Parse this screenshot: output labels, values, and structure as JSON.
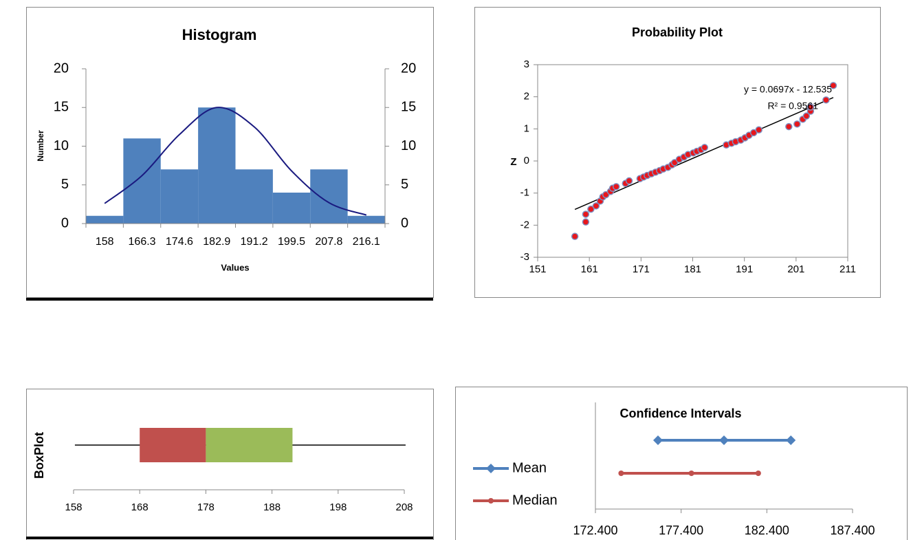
{
  "chart_data": [
    {
      "type": "bar",
      "title": "Histogram",
      "x_label": "Values",
      "y_label": "Number",
      "categories": [
        "158",
        "166.3",
        "174.6",
        "182.9",
        "191.2",
        "199.5",
        "207.8",
        "216.1"
      ],
      "values": [
        1,
        11,
        7,
        15,
        7,
        4,
        7,
        1
      ],
      "line_values": [
        2.6,
        6.2,
        11.5,
        15,
        12.5,
        6.8,
        2.7,
        1.1
      ],
      "color": "#4f81bd",
      "line_color": "#1a1a80",
      "ylim": [
        0,
        20
      ],
      "yticks": [
        0,
        5,
        10,
        15,
        20
      ],
      "y2lim": [
        0,
        20
      ],
      "y2ticks": [
        0,
        5,
        10,
        15,
        20
      ]
    },
    {
      "type": "scatter",
      "title": "Probability Plot",
      "y_label": "Z",
      "x": [
        158.2,
        160.3,
        160.3,
        161.3,
        162.3,
        163.1,
        163.6,
        164.2,
        165.1,
        165.5,
        166.2,
        168.0,
        168.7,
        170.8,
        171.5,
        172.2,
        173.0,
        173.8,
        174.6,
        175.3,
        176.2,
        177.0,
        177.5,
        178.4,
        179.3,
        180.1,
        181.1,
        181.8,
        182.6,
        183.3,
        187.5,
        188.5,
        189.3,
        190.3,
        191.1,
        191.9,
        192.8,
        193.8,
        199.6,
        201.2,
        202.3,
        203.0,
        203.8,
        203.8,
        206.8,
        208.2
      ],
      "y": [
        -2.35,
        -1.9,
        -1.66,
        -1.5,
        -1.4,
        -1.25,
        -1.12,
        -1.05,
        -0.95,
        -0.85,
        -0.8,
        -0.7,
        -0.62,
        -0.55,
        -0.5,
        -0.45,
        -0.4,
        -0.35,
        -0.3,
        -0.25,
        -0.2,
        -0.12,
        -0.05,
        0.05,
        0.12,
        0.2,
        0.25,
        0.3,
        0.35,
        0.42,
        0.5,
        0.55,
        0.6,
        0.65,
        0.72,
        0.8,
        0.88,
        0.97,
        1.07,
        1.15,
        1.3,
        1.4,
        1.55,
        1.68,
        1.9,
        2.35
      ],
      "color": "#e8161b",
      "edge_color": "#7f8fc0",
      "trendline": {
        "slope": 0.0697,
        "intercept": -12.535,
        "equation": "y = 0.0697x - 12.535",
        "r_squared": "R² = 0.9561"
      },
      "xlim": [
        151,
        211
      ],
      "xticks": [
        151,
        161,
        171,
        181,
        191,
        201,
        211
      ],
      "ylim": [
        -3,
        3
      ],
      "yticks": [
        -3,
        -2,
        -1,
        0,
        1,
        2,
        3
      ]
    },
    {
      "type": "box",
      "y_label": "BoxPlot",
      "min": 158.2,
      "q1": 168,
      "median": 178,
      "q3": 191.1,
      "max": 208.2,
      "lower_color": "#c0504d",
      "upper_color": "#9bbb59",
      "xlim": [
        158,
        208
      ],
      "xticks": [
        158,
        168,
        178,
        188,
        198,
        208
      ]
    },
    {
      "type": "line",
      "title": "Confidence Intervals",
      "series": [
        {
          "name": "Mean",
          "color": "#4f81bd",
          "marker": "diamond",
          "values": [
            176.05,
            179.9,
            183.8
          ]
        },
        {
          "name": "Median",
          "color": "#c0504d",
          "marker": "circle",
          "values": [
            173.9,
            178.0,
            181.9
          ]
        }
      ],
      "xlim": [
        172.4,
        187.4
      ],
      "xticks": [
        {
          "value": 172.4,
          "label": "172.400"
        },
        {
          "value": 177.4,
          "label": "177.400"
        },
        {
          "value": 182.4,
          "label": "182.400"
        },
        {
          "value": 187.4,
          "label": "187.400"
        }
      ]
    }
  ]
}
